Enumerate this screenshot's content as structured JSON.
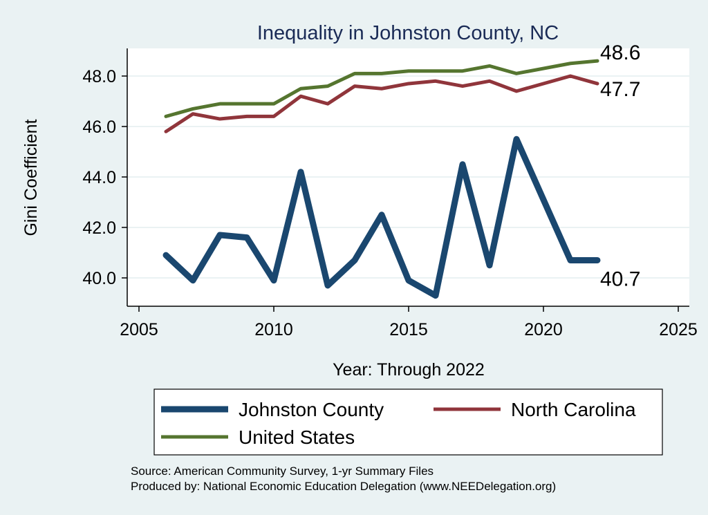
{
  "chart_data": {
    "type": "line",
    "title": "Inequality in Johnston County, NC",
    "xlabel": "Year: Through 2022",
    "ylabel": "Gini Coefficient",
    "xlim": [
      2005,
      2025
    ],
    "ylim": [
      39.0,
      49.0
    ],
    "xticks": [
      2005,
      2010,
      2015,
      2020,
      2025
    ],
    "xtick_labels": [
      "2005",
      "2010",
      "2015",
      "2020",
      "2025"
    ],
    "yticks": [
      40,
      42,
      44,
      46,
      48
    ],
    "ytick_labels": [
      "40.0",
      "42.0",
      "44.0",
      "46.0",
      "48.0"
    ],
    "grid": true,
    "legend_position": "bottom",
    "x": [
      2006,
      2007,
      2008,
      2009,
      2010,
      2011,
      2012,
      2013,
      2014,
      2015,
      2016,
      2017,
      2018,
      2019,
      2021,
      2022
    ],
    "series": [
      {
        "name": "Johnston County",
        "color": "#1a476f",
        "values": [
          40.9,
          39.9,
          41.7,
          41.6,
          39.9,
          44.2,
          39.7,
          40.7,
          42.5,
          39.9,
          39.3,
          44.5,
          40.5,
          45.5,
          40.7,
          40.7
        ],
        "end_label": "40.7"
      },
      {
        "name": "North Carolina",
        "color": "#90353b",
        "values": [
          45.8,
          46.5,
          46.3,
          46.4,
          46.4,
          47.2,
          46.9,
          47.6,
          47.5,
          47.7,
          47.8,
          47.6,
          47.8,
          47.4,
          48.0,
          47.7
        ],
        "end_label": "47.7"
      },
      {
        "name": "United States",
        "color": "#55752f",
        "values": [
          46.4,
          46.7,
          46.9,
          46.9,
          46.9,
          47.5,
          47.6,
          48.1,
          48.1,
          48.2,
          48.2,
          48.2,
          48.4,
          48.1,
          48.5,
          48.6
        ],
        "end_label": "48.6"
      }
    ],
    "notes": [
      "Source: American Community Survey, 1-yr Summary Files",
      "Produced by: National Economic Education Delegation (www.NEEDelegation.org)"
    ]
  }
}
